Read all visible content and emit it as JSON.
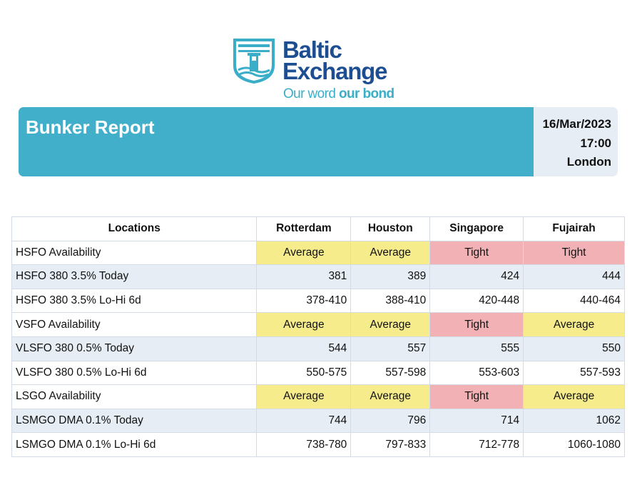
{
  "brand": {
    "name_line1": "Baltic",
    "name_line2": "Exchange",
    "tagline_regular": "Our word ",
    "tagline_bold": "our bond",
    "logo_icon": "lighthouse-shield-icon",
    "colors": {
      "navy": "#1d4e91",
      "teal": "#3aaec8"
    }
  },
  "header": {
    "title": "Bunker Report",
    "date": "16/Mar/2023",
    "time": "17:00",
    "location": "London",
    "colors": {
      "banner": "#42afca",
      "panel": "#e6edf4"
    }
  },
  "table": {
    "headers": [
      "Locations",
      "Rotterdam",
      "Houston",
      "Singapore",
      "Fujairah"
    ],
    "status_colors": {
      "Average": "#f6ec8c",
      "Tight": "#f2b2b5"
    },
    "rows": [
      {
        "label": "HSFO Availability",
        "kind": "avail",
        "cells": [
          "Average",
          "Average",
          "Tight",
          "Tight"
        ]
      },
      {
        "label": "HSFO 380 3.5% Today",
        "kind": "num",
        "cells": [
          "381",
          "389",
          "424",
          "444"
        ]
      },
      {
        "label": "HSFO 380 3.5% Lo-Hi 6d",
        "kind": "num",
        "cells": [
          "378-410",
          "388-410",
          "420-448",
          "440-464"
        ]
      },
      {
        "label": "VSFO Availability",
        "kind": "avail",
        "cells": [
          "Average",
          "Average",
          "Tight",
          "Average"
        ]
      },
      {
        "label": "VLSFO 380 0.5% Today",
        "kind": "num",
        "cells": [
          "544",
          "557",
          "555",
          "550"
        ]
      },
      {
        "label": "VLSFO 380 0.5% Lo-Hi 6d",
        "kind": "num",
        "cells": [
          "550-575",
          "557-598",
          "553-603",
          "557-593"
        ]
      },
      {
        "label": "LSGO Availability",
        "kind": "avail",
        "cells": [
          "Average",
          "Average",
          "Tight",
          "Average"
        ]
      },
      {
        "label": "LSMGO DMA 0.1% Today",
        "kind": "num",
        "cells": [
          "744",
          "796",
          "714",
          "1062"
        ]
      },
      {
        "label": "LSMGO DMA 0.1% Lo-Hi 6d",
        "kind": "num",
        "cells": [
          "738-780",
          "797-833",
          "712-778",
          "1060-1080"
        ]
      }
    ]
  }
}
